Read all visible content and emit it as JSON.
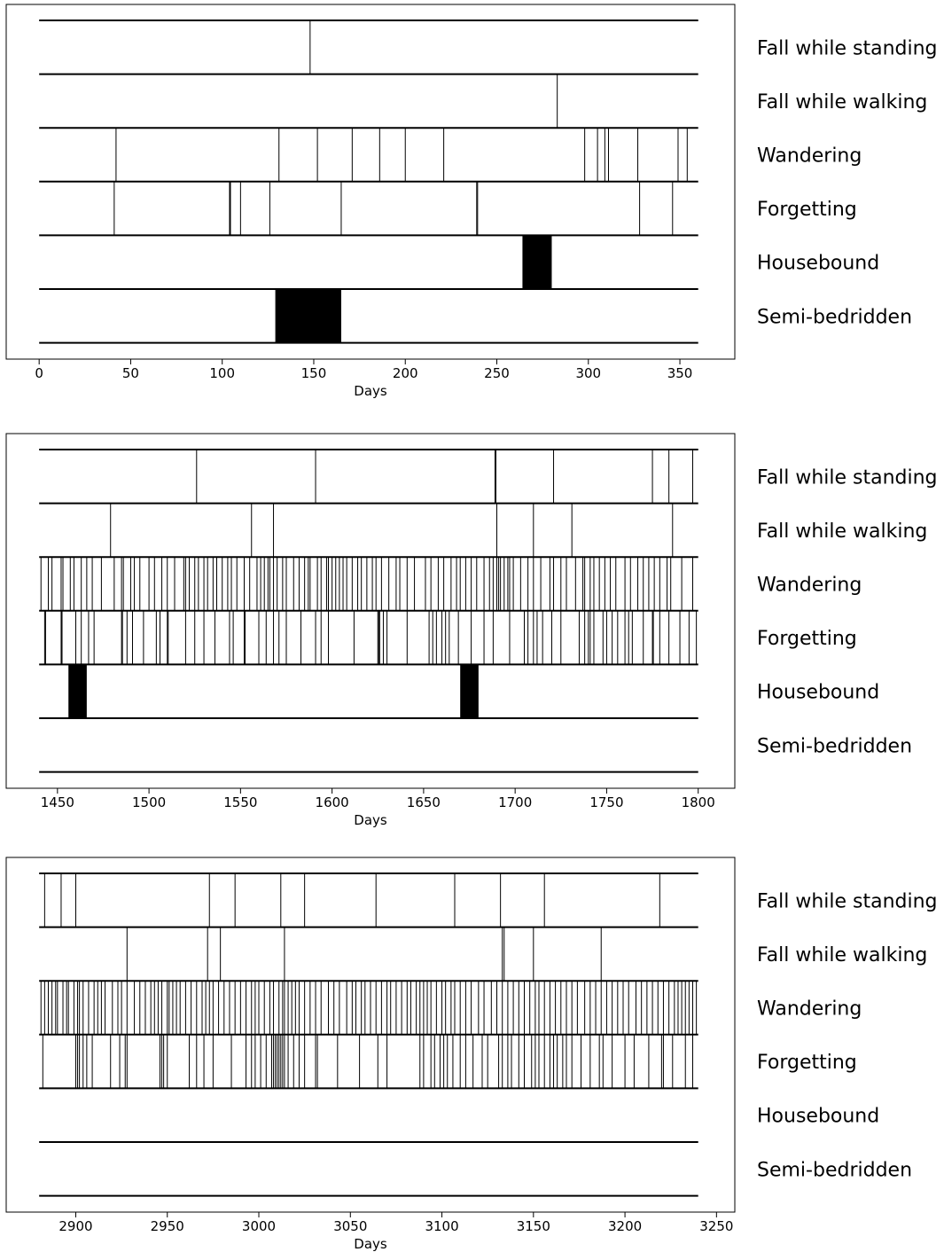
{
  "chart_data": [
    {
      "type": "event-timeline",
      "xlabel": "Days",
      "xlim": [
        -18,
        380
      ],
      "data_range": [
        0,
        360
      ],
      "xticks": [
        0,
        50,
        100,
        150,
        200,
        250,
        300,
        350
      ],
      "rows": [
        {
          "name": "Fall while standing",
          "events": [
            148
          ]
        },
        {
          "name": "Fall while walking",
          "events": [
            283
          ]
        },
        {
          "name": "Wandering",
          "events": [
            42,
            131,
            152,
            171,
            186,
            200,
            221,
            298,
            305,
            309,
            311,
            327,
            349,
            354
          ]
        },
        {
          "name": "Forgetting",
          "events": [
            41,
            104,
            104.5,
            110,
            126,
            165,
            239,
            239.5,
            328,
            346
          ]
        },
        {
          "name": "Housebound",
          "events": [],
          "spans": [
            [
              264,
              280
            ]
          ]
        },
        {
          "name": "Semi-bedridden",
          "events": [],
          "spans": [
            [
              129,
              165
            ]
          ]
        }
      ]
    },
    {
      "type": "event-timeline",
      "xlabel": "Days",
      "xlim": [
        1422,
        1820
      ],
      "data_range": [
        1440,
        1800
      ],
      "xticks": [
        1450,
        1500,
        1550,
        1600,
        1650,
        1700,
        1750,
        1800
      ],
      "rows": [
        {
          "name": "Fall while standing",
          "events": [
            1526,
            1591,
            1689,
            1689.5,
            1721,
            1775,
            1784,
            1797
          ]
        },
        {
          "name": "Fall while walking",
          "events": [
            1479,
            1556,
            1568,
            1690,
            1710,
            1731,
            1786
          ]
        },
        {
          "name": "Wandering",
          "events": [
            1441,
            1445,
            1447,
            1452,
            1453,
            1457,
            1459,
            1463,
            1466,
            1469,
            1474,
            1481,
            1485,
            1486,
            1490,
            1492,
            1495,
            1500,
            1503,
            1507,
            1510,
            1514,
            1519,
            1520,
            1522,
            1525,
            1527,
            1530,
            1532,
            1535,
            1537,
            1540,
            1543,
            1545,
            1548,
            1552,
            1555,
            1559,
            1561,
            1563,
            1565,
            1566,
            1568,
            1570,
            1573,
            1575,
            1579,
            1582,
            1585,
            1587,
            1588,
            1592,
            1594,
            1597,
            1598,
            1600,
            1602,
            1604,
            1606,
            1608,
            1611,
            1614,
            1616,
            1619,
            1622,
            1624,
            1627,
            1631,
            1635,
            1637,
            1641,
            1645,
            1651,
            1654,
            1658,
            1661,
            1665,
            1668,
            1670,
            1673,
            1676,
            1679,
            1683,
            1686,
            1688,
            1690,
            1691,
            1692,
            1694,
            1696,
            1697,
            1699,
            1703,
            1707,
            1710,
            1714,
            1719,
            1721,
            1725,
            1728,
            1733,
            1737,
            1738,
            1741,
            1743,
            1746,
            1749,
            1752,
            1755,
            1760,
            1763,
            1767,
            1770,
            1773,
            1776,
            1779,
            1783,
            1785,
            1791,
            1797
          ]
        },
        {
          "name": "Forgetting",
          "events": [
            1443,
            1443.5,
            1452,
            1452.5,
            1460,
            1463,
            1467,
            1470,
            1485,
            1485.5,
            1488,
            1491,
            1497,
            1504,
            1506,
            1510,
            1510.5,
            1520,
            1525,
            1530,
            1536,
            1544,
            1546,
            1552,
            1552.5,
            1560,
            1564,
            1568,
            1571,
            1575,
            1583,
            1591,
            1594,
            1598,
            1612,
            1625,
            1625.5,
            1626,
            1628,
            1630,
            1641,
            1653,
            1655,
            1657,
            1660,
            1662,
            1664,
            1669,
            1676,
            1683,
            1688,
            1697,
            1705,
            1707,
            1710,
            1712,
            1715,
            1720,
            1725,
            1735,
            1738,
            1740,
            1741,
            1743,
            1748,
            1750,
            1753,
            1756,
            1760,
            1762,
            1764,
            1770,
            1775,
            1775.5,
            1779,
            1784,
            1790,
            1795,
            1799
          ]
        },
        {
          "name": "Housebound",
          "events": [],
          "spans": [
            [
              1456,
              1466
            ],
            [
              1670,
              1680
            ]
          ]
        },
        {
          "name": "Semi-bedridden",
          "events": [],
          "spans": []
        }
      ]
    },
    {
      "type": "event-timeline",
      "xlabel": "Days",
      "xlim": [
        2862,
        3260
      ],
      "data_range": [
        2880,
        3240
      ],
      "xticks": [
        2900,
        2950,
        3000,
        3050,
        3100,
        3150,
        3200,
        3250
      ],
      "rows": [
        {
          "name": "Fall while standing",
          "events": [
            2883,
            2892,
            2900,
            2973,
            2987,
            3012,
            3025,
            3064,
            3107,
            3132,
            3156,
            3219
          ]
        },
        {
          "name": "Fall while walking",
          "events": [
            2928,
            2972,
            2979,
            3014,
            3133,
            3134,
            3150,
            3187
          ]
        },
        {
          "name": "Wandering",
          "events": [
            2881,
            2883,
            2885,
            2887,
            2889,
            2890,
            2893,
            2895,
            2896,
            2899,
            2901,
            2902,
            2904,
            2907,
            2910,
            2912,
            2914,
            2916,
            2920,
            2923,
            2925,
            2928,
            2932,
            2935,
            2938,
            2941,
            2943,
            2945,
            2947,
            2950,
            2951,
            2953,
            2955,
            2957,
            2960,
            2963,
            2966,
            2969,
            2971,
            2973,
            2975,
            2978,
            2981,
            2984,
            2987,
            2990,
            2993,
            2996,
            2998,
            3000,
            3003,
            3006,
            3008,
            3011,
            3013,
            3014,
            3016,
            3018,
            3020,
            3022,
            3025,
            3028,
            3031,
            3034,
            3038,
            3041,
            3044,
            3048,
            3051,
            3053,
            3056,
            3058,
            3061,
            3064,
            3067,
            3070,
            3072,
            3075,
            3078,
            3081,
            3083,
            3086,
            3088,
            3090,
            3092,
            3094,
            3097,
            3100,
            3102,
            3105,
            3107,
            3110,
            3113,
            3116,
            3120,
            3123,
            3127,
            3130,
            3133,
            3136,
            3139,
            3142,
            3145,
            3148,
            3151,
            3153,
            3156,
            3159,
            3162,
            3165,
            3168,
            3171,
            3174,
            3178,
            3181,
            3184,
            3187,
            3190,
            3193,
            3196,
            3199,
            3202,
            3206,
            3209,
            3212,
            3215,
            3218,
            3221,
            3224,
            3227,
            3229,
            3231,
            3233,
            3235,
            3237,
            3239
          ]
        },
        {
          "name": "Forgetting",
          "events": [
            2882,
            2900,
            2901,
            2902,
            2904,
            2906,
            2909,
            2919,
            2924,
            2927,
            2928,
            2946,
            2947,
            2948,
            2950,
            2962,
            2966,
            2970,
            2975,
            2985,
            2993,
            2996,
            2998,
            3001,
            3004,
            3007,
            3008,
            3009,
            3010,
            3011,
            3012,
            3013,
            3014,
            3016,
            3019,
            3022,
            3025,
            3031,
            3032,
            3043,
            3055,
            3065,
            3070,
            3088,
            3090,
            3094,
            3096,
            3099,
            3101,
            3103,
            3106,
            3110,
            3113,
            3117,
            3122,
            3125,
            3131,
            3133,
            3136,
            3138,
            3142,
            3145,
            3149,
            3151,
            3153,
            3156,
            3159,
            3161,
            3163,
            3166,
            3168,
            3171,
            3176,
            3181,
            3186,
            3188,
            3193,
            3200,
            3205,
            3213,
            3220,
            3221,
            3226,
            3233,
            3237
          ]
        },
        {
          "name": "Housebound",
          "events": [],
          "spans": []
        },
        {
          "name": "Semi-bedridden",
          "events": [],
          "spans": []
        }
      ]
    }
  ]
}
